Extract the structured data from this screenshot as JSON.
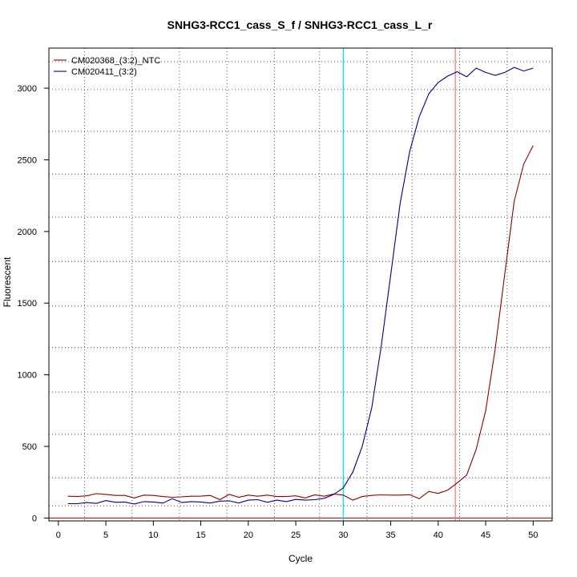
{
  "chart_data": {
    "type": "line",
    "title": "SNHG3-RCC1_cass_S_f / SNHG3-RCC1_cass_L_r",
    "xlabel": "Cycle",
    "ylabel": "Fluorescent",
    "xlim": [
      -1,
      52
    ],
    "ylim": [
      -20,
      3280
    ],
    "x_ticks": [
      0,
      5,
      10,
      15,
      20,
      25,
      30,
      35,
      40,
      45,
      50
    ],
    "y_ticks": [
      0,
      500,
      1000,
      1500,
      2000,
      2500,
      3000
    ],
    "grid": true,
    "grid_x": [
      2.75,
      7.75,
      12.75,
      17.75,
      22.75,
      27.5,
      32.5,
      37.25,
      42.25,
      47.25
    ],
    "grid_y": [
      85,
      280,
      585,
      880,
      1190,
      1480,
      1790,
      2100,
      2400,
      2700,
      2990,
      3185
    ],
    "legend_position": "top-left",
    "baseline_y": 0,
    "threshold_lines": [
      {
        "x": 30,
        "color": "#00e5ee"
      },
      {
        "x": 41.8,
        "color": "#f08080"
      }
    ],
    "series": [
      {
        "name": "CM020368_(3:2)_NTC",
        "color": "#8b0000",
        "x": [
          1,
          2,
          3,
          4,
          5,
          6,
          7,
          8,
          9,
          10,
          11,
          12,
          13,
          14,
          15,
          16,
          17,
          18,
          19,
          20,
          21,
          22,
          23,
          24,
          25,
          26,
          27,
          28,
          29,
          30,
          31,
          32,
          33,
          34,
          35,
          36,
          37,
          38,
          39,
          40,
          41,
          42,
          43,
          44,
          45,
          46,
          47,
          48,
          49,
          50
        ],
        "y": [
          152,
          150,
          155,
          170,
          165,
          158,
          158,
          140,
          160,
          158,
          150,
          145,
          148,
          152,
          153,
          158,
          128,
          165,
          145,
          160,
          152,
          160,
          150,
          150,
          155,
          140,
          162,
          152,
          168,
          160,
          125,
          150,
          158,
          162,
          160,
          160,
          163,
          135,
          185,
          172,
          195,
          245,
          300,
          480,
          750,
          1180,
          1700,
          2210,
          2470,
          2600
        ]
      },
      {
        "name": "CM020411_(3:2)",
        "color": "#000080",
        "x": [
          1,
          2,
          3,
          4,
          5,
          6,
          7,
          8,
          9,
          10,
          11,
          12,
          13,
          14,
          15,
          16,
          17,
          18,
          19,
          20,
          21,
          22,
          23,
          24,
          25,
          26,
          27,
          28,
          29,
          30,
          31,
          32,
          33,
          34,
          35,
          36,
          37,
          38,
          39,
          40,
          41,
          42,
          43,
          44,
          45,
          46,
          47,
          48,
          49,
          50
        ],
        "y": [
          100,
          100,
          108,
          102,
          122,
          110,
          112,
          98,
          115,
          112,
          105,
          135,
          108,
          115,
          112,
          105,
          118,
          120,
          105,
          125,
          128,
          110,
          125,
          115,
          130,
          125,
          128,
          138,
          165,
          210,
          320,
          500,
          770,
          1200,
          1700,
          2200,
          2560,
          2800,
          2960,
          3040,
          3085,
          3115,
          3080,
          3140,
          3110,
          3090,
          3110,
          3145,
          3120,
          3140
        ]
      }
    ]
  }
}
